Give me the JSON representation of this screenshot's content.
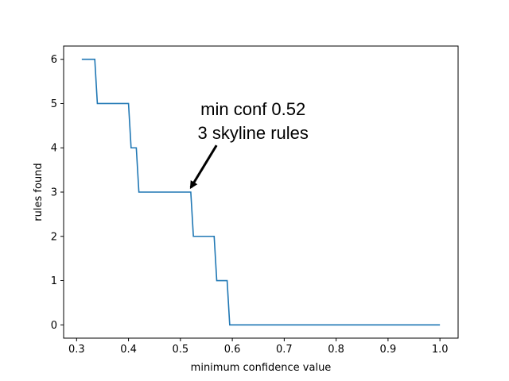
{
  "chart_data": {
    "type": "line",
    "title": "",
    "xlabel": "minimum confidence value",
    "ylabel": "rules found",
    "xlim": [
      0.275,
      1.035
    ],
    "ylim": [
      -0.3,
      6.3
    ],
    "xticks": [
      0.3,
      0.4,
      0.5,
      0.6,
      0.7,
      0.8,
      0.9,
      1.0
    ],
    "xtick_labels": [
      "0.3",
      "0.4",
      "0.5",
      "0.6",
      "0.7",
      "0.8",
      "0.9",
      "1.0"
    ],
    "yticks": [
      0,
      1,
      2,
      3,
      4,
      5,
      6
    ],
    "ytick_labels": [
      "0",
      "1",
      "2",
      "3",
      "4",
      "5",
      "6"
    ],
    "grid": false,
    "series": [
      {
        "color": "#1f77b4",
        "step": true,
        "x": [
          0.31,
          0.335,
          0.34,
          0.4,
          0.405,
          0.415,
          0.42,
          0.52,
          0.525,
          0.565,
          0.57,
          0.59,
          0.595,
          1.0
        ],
        "y": [
          6,
          6,
          5,
          5,
          4,
          4,
          3,
          3,
          2,
          2,
          1,
          1,
          0,
          0
        ]
      }
    ],
    "annotation": {
      "lines": [
        "min conf 0.52",
        "3 skyline rules"
      ],
      "arrow_target": [
        0.52,
        3.1
      ],
      "text_position": [
        0.64,
        4.45
      ]
    }
  }
}
